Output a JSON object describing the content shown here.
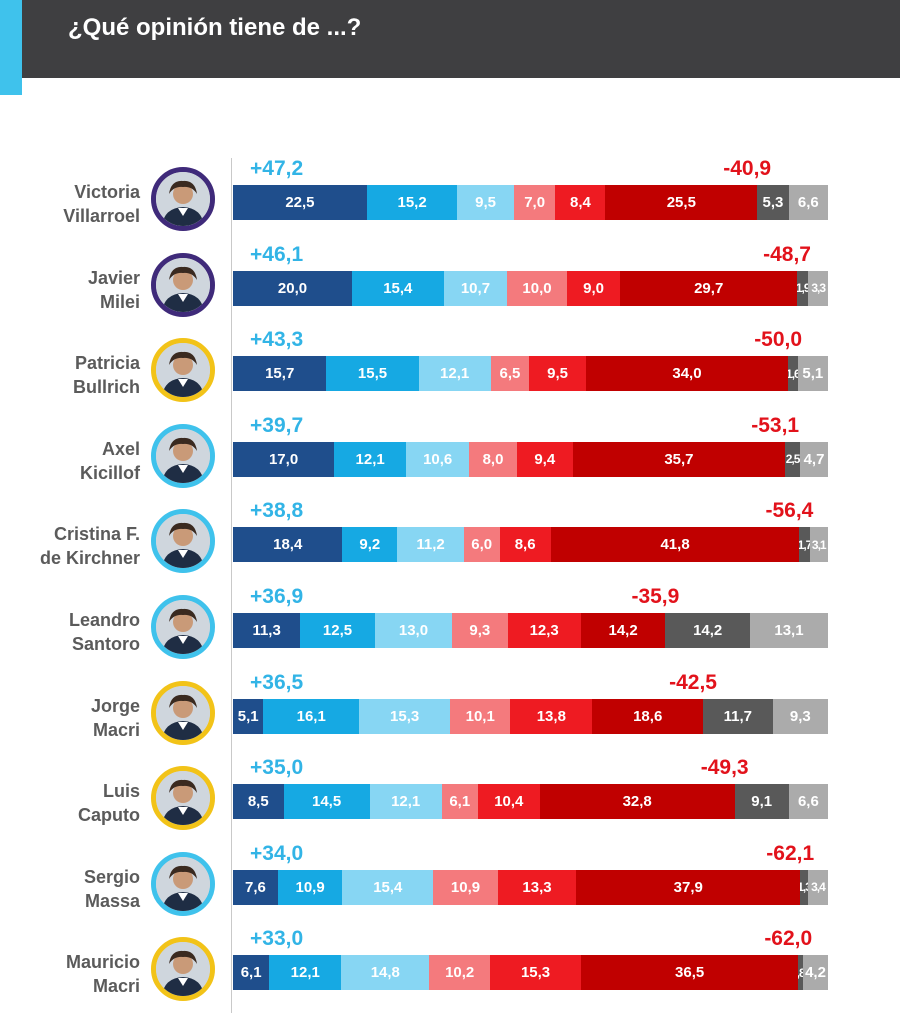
{
  "header": {
    "title": "¿Qué opinión tiene de ...?"
  },
  "colors": {
    "segments": [
      "#1f4e8c",
      "#16a9e3",
      "#87d6f3",
      "#f47a7d",
      "#ee1b22",
      "#c00000",
      "#595959",
      "#ababab"
    ],
    "positive_total": "#32b4e6",
    "negative_total": "#e2121b",
    "header_bg": "#3f3f41",
    "header_accent": "#3fc2ec"
  },
  "chart_data": {
    "type": "bar",
    "orientation": "horizontal",
    "stacked": true,
    "title": "¿Qué opinión tiene de ...?",
    "series_names": [
      "positive-1",
      "positive-2",
      "positive-3",
      "negative-1",
      "negative-2",
      "negative-3",
      "dark-gray",
      "light-gray"
    ],
    "rows": [
      {
        "name_line1": "Victoria",
        "name_line2": "Villarroel",
        "avatar_ring": "#3f2a7a",
        "positive_total": "+47,2",
        "negative_total": "-40,9",
        "values": [
          22.5,
          15.2,
          9.5,
          7.0,
          8.4,
          25.5,
          5.3,
          6.6
        ],
        "labels": [
          "22,5",
          "15,2",
          "9,5",
          "7,0",
          "8,4",
          "25,5",
          "5,3",
          "6,6"
        ]
      },
      {
        "name_line1": "Javier",
        "name_line2": "Milei",
        "avatar_ring": "#3f2a7a",
        "positive_total": "+46,1",
        "negative_total": "-48,7",
        "values": [
          20.0,
          15.4,
          10.7,
          10.0,
          9.0,
          29.7,
          1.9,
          3.3
        ],
        "labels": [
          "20,0",
          "15,4",
          "10,7",
          "10,0",
          "9,0",
          "29,7",
          "1,9",
          "3,3"
        ]
      },
      {
        "name_line1": "Patricia",
        "name_line2": "Bullrich",
        "avatar_ring": "#f2c318",
        "positive_total": "+43,3",
        "negative_total": "-50,0",
        "values": [
          15.7,
          15.5,
          12.1,
          6.5,
          9.5,
          34.0,
          1.6,
          5.1
        ],
        "labels": [
          "15,7",
          "15,5",
          "12,1",
          "6,5",
          "9,5",
          "34,0",
          "1,6",
          "5,1"
        ]
      },
      {
        "name_line1": "Axel",
        "name_line2": "Kicillof",
        "avatar_ring": "#3fc2ec",
        "positive_total": "+39,7",
        "negative_total": "-53,1",
        "values": [
          17.0,
          12.1,
          10.6,
          8.0,
          9.4,
          35.7,
          2.5,
          4.7
        ],
        "labels": [
          "17,0",
          "12,1",
          "10,6",
          "8,0",
          "9,4",
          "35,7",
          "2,5",
          "4,7"
        ]
      },
      {
        "name_line1": "Cristina F.",
        "name_line2": "de Kirchner",
        "avatar_ring": "#3fc2ec",
        "positive_total": "+38,8",
        "negative_total": "-56,4",
        "values": [
          18.4,
          9.2,
          11.2,
          6.0,
          8.6,
          41.8,
          1.7,
          3.1
        ],
        "labels": [
          "18,4",
          "9,2",
          "11,2",
          "6,0",
          "8,6",
          "41,8",
          "1,7",
          "3,1"
        ]
      },
      {
        "name_line1": "Leandro",
        "name_line2": "Santoro",
        "avatar_ring": "#3fc2ec",
        "positive_total": "+36,9",
        "negative_total": "-35,9",
        "values": [
          11.3,
          12.5,
          13.0,
          9.3,
          12.3,
          14.2,
          14.2,
          13.1
        ],
        "labels": [
          "11,3",
          "12,5",
          "13,0",
          "9,3",
          "12,3",
          "14,2",
          "14,2",
          "13,1"
        ]
      },
      {
        "name_line1": "Jorge",
        "name_line2": "Macri",
        "avatar_ring": "#f2c318",
        "positive_total": "+36,5",
        "negative_total": "-42,5",
        "values": [
          5.1,
          16.1,
          15.3,
          10.1,
          13.8,
          18.6,
          11.7,
          9.3
        ],
        "labels": [
          "5,1",
          "16,1",
          "15,3",
          "10,1",
          "13,8",
          "18,6",
          "11,7",
          "9,3"
        ]
      },
      {
        "name_line1": "Luis",
        "name_line2": "Caputo",
        "avatar_ring": "#f2c318",
        "positive_total": "+35,0",
        "negative_total": "-49,3",
        "values": [
          8.5,
          14.5,
          12.1,
          6.1,
          10.4,
          32.8,
          9.1,
          6.6
        ],
        "labels": [
          "8,5",
          "14,5",
          "12,1",
          "6,1",
          "10,4",
          "32,8",
          "9,1",
          "6,6"
        ]
      },
      {
        "name_line1": "Sergio",
        "name_line2": "Massa",
        "avatar_ring": "#3fc2ec",
        "positive_total": "+34,0",
        "negative_total": "-62,1",
        "values": [
          7.6,
          10.9,
          15.4,
          10.9,
          13.3,
          37.9,
          1.3,
          3.4
        ],
        "labels": [
          "7,6",
          "10,9",
          "15,4",
          "10,9",
          "13,3",
          "37,9",
          "1,3",
          "3,4"
        ]
      },
      {
        "name_line1": "Mauricio",
        "name_line2": "Macri",
        "avatar_ring": "#f2c318",
        "positive_total": "+33,0",
        "negative_total": "-62,0",
        "values": [
          6.1,
          12.1,
          14.8,
          10.2,
          15.3,
          36.5,
          0.8,
          4.2
        ],
        "labels": [
          "6,1",
          "12,1",
          "14,8",
          "10,2",
          "15,3",
          "36,5",
          ",8",
          "4,2"
        ]
      }
    ]
  }
}
